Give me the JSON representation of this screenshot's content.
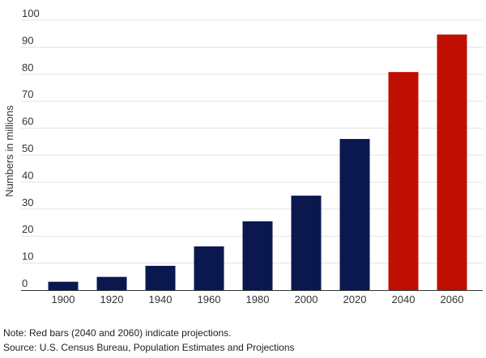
{
  "chart_data": {
    "type": "bar",
    "title": "",
    "xlabel": "",
    "ylabel": "Numbers in millions",
    "categories": [
      "1900",
      "1920",
      "1940",
      "1960",
      "1980",
      "2000",
      "2020",
      "2040",
      "2060"
    ],
    "values": [
      3.1,
      4.9,
      9.0,
      16.2,
      25.5,
      35.0,
      56.0,
      80.8,
      94.7
    ],
    "projected": [
      false,
      false,
      false,
      false,
      false,
      false,
      false,
      true,
      true
    ],
    "ylim": [
      0,
      100
    ],
    "yticks": [
      0,
      10,
      20,
      30,
      40,
      50,
      60,
      70,
      80,
      90,
      100
    ],
    "grid": true,
    "colors": {
      "actual": "#0b1850",
      "projection": "#bf0f02",
      "grid": "#e3e3e3",
      "axis": "#333333"
    }
  },
  "notes": {
    "note": "Note: Red bars (2040 and 2060) indicate projections.",
    "source": "Source: U.S. Census Bureau, Population Estimates and Projections"
  }
}
